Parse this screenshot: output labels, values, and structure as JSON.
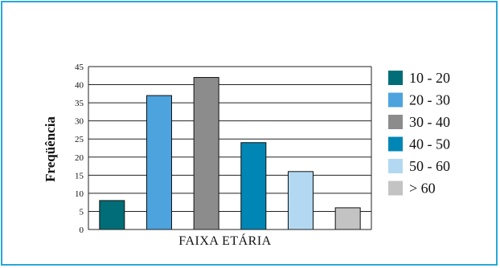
{
  "chart_data": {
    "type": "bar",
    "categories": [
      "10 - 20",
      "20 - 30",
      "30 - 40",
      "40 - 50",
      "50 - 60",
      "> 60"
    ],
    "values": [
      8,
      37,
      42,
      24,
      16,
      6
    ],
    "colors": [
      "#006d77",
      "#4ca3dd",
      "#8c8c8c",
      "#0086b5",
      "#b3d8f2",
      "#c3c3c3"
    ],
    "ylabel": "Freqüência",
    "xlabel": "FAIXA ETÁRIA",
    "yticks": [
      0,
      5,
      10,
      15,
      20,
      25,
      30,
      35,
      40,
      45
    ],
    "ylim": [
      0,
      45
    ],
    "grid": true,
    "legend_position": "right"
  }
}
